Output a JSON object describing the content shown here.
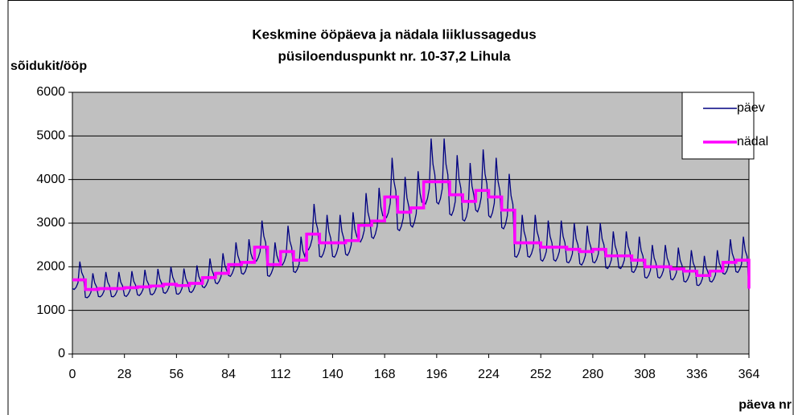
{
  "chart_data": {
    "type": "line",
    "title": "Keskmine ööpäeva ja nädala liiklussagedus",
    "subtitle": "püsiloenduspunkt nr. 10-37,2 Lihula",
    "ylabel": "sõidukit/ööp",
    "xlabel": "päeva nr",
    "xlim": [
      0,
      364
    ],
    "xticks": [
      0,
      28,
      56,
      84,
      112,
      140,
      168,
      196,
      224,
      252,
      280,
      308,
      336,
      364
    ],
    "ylim": [
      0,
      6000
    ],
    "yticks": [
      0,
      1000,
      2000,
      3000,
      4000,
      5000,
      6000
    ],
    "grid": true,
    "legend": "upper right",
    "x": [
      0,
      1,
      2,
      3,
      4,
      5,
      6,
      7,
      8,
      9,
      10,
      11,
      12,
      13,
      14,
      15,
      16,
      17,
      18,
      19,
      20,
      21,
      22,
      23,
      24,
      25,
      26,
      27,
      28,
      29,
      30,
      31,
      32,
      33,
      34,
      35,
      36,
      37,
      38,
      39,
      40,
      41,
      42,
      43,
      44,
      45,
      46,
      47,
      48,
      49,
      50,
      51,
      52,
      53,
      54,
      55,
      56,
      57,
      58,
      59,
      60,
      61,
      62,
      63,
      64,
      65,
      66,
      67,
      68,
      69,
      70,
      71,
      72,
      73,
      74,
      75,
      76,
      77,
      78,
      79,
      80,
      81,
      82,
      83,
      84,
      85,
      86,
      87,
      88,
      89,
      90,
      91,
      92,
      93,
      94,
      95,
      96,
      97,
      98,
      99,
      100,
      101,
      102,
      103,
      104,
      105,
      106,
      107,
      108,
      109,
      110,
      111,
      112,
      113,
      114,
      115,
      116,
      117,
      118,
      119,
      120,
      121,
      122,
      123,
      124,
      125,
      126,
      127,
      128,
      129,
      130,
      131,
      132,
      133,
      134,
      135,
      136,
      137,
      138,
      139,
      140,
      141,
      142,
      143,
      144,
      145,
      146,
      147,
      148,
      149,
      150,
      151,
      152,
      153,
      154,
      155,
      156,
      157,
      158,
      159,
      160,
      161,
      162,
      163,
      164,
      165,
      166,
      167,
      168,
      169,
      170,
      171,
      172,
      173,
      174,
      175,
      176,
      177,
      178,
      179,
      180,
      181,
      182,
      183,
      184,
      185,
      186,
      187,
      188,
      189,
      190,
      191,
      192,
      193,
      194,
      195,
      196,
      197,
      198,
      199,
      200,
      201,
      202,
      203,
      204,
      205,
      206,
      207,
      208,
      209,
      210,
      211,
      212,
      213,
      214,
      215,
      216,
      217,
      218,
      219,
      220,
      221,
      222,
      223,
      224,
      225,
      226,
      227,
      228,
      229,
      230,
      231,
      232,
      233,
      234,
      235,
      236,
      237,
      238,
      239,
      240,
      241,
      242,
      243,
      244,
      245,
      246,
      247,
      248,
      249,
      250,
      251,
      252,
      253,
      254,
      255,
      256,
      257,
      258,
      259,
      260,
      261,
      262,
      263,
      264,
      265,
      266,
      267,
      268,
      269,
      270,
      271,
      272,
      273,
      274,
      275,
      276,
      277,
      278,
      279,
      280,
      281,
      282,
      283,
      284,
      285,
      286,
      287,
      288,
      289,
      290,
      291,
      292,
      293,
      294,
      295,
      296,
      297,
      298,
      299,
      300,
      301,
      302,
      303,
      304,
      305,
      306,
      307,
      308,
      309,
      310,
      311,
      312,
      313,
      314,
      315,
      316,
      317,
      318,
      319,
      320,
      321,
      322,
      323,
      324,
      325,
      326,
      327,
      328,
      329,
      330,
      331,
      332,
      333,
      334,
      335,
      336,
      337,
      338,
      339,
      340,
      341,
      342,
      343,
      344,
      345,
      346,
      347,
      348,
      349,
      350,
      351,
      352,
      353,
      354,
      355,
      356,
      357,
      358,
      359,
      360,
      361,
      362,
      363,
      364
    ],
    "series": [
      {
        "name": "päev",
        "color": "#000080",
        "values": [
          1500,
          1480,
          1530,
          1630,
          2120,
          1870,
          1770,
          1300,
          1290,
          1330,
          1420,
          1850,
          1630,
          1540,
          1320,
          1310,
          1350,
          1440,
          1880,
          1650,
          1560,
          1320,
          1310,
          1350,
          1440,
          1880,
          1650,
          1560,
          1340,
          1320,
          1370,
          1460,
          1900,
          1670,
          1580,
          1360,
          1340,
          1390,
          1480,
          1930,
          1690,
          1600,
          1370,
          1360,
          1400,
          1500,
          1950,
          1720,
          1620,
          1410,
          1390,
          1440,
          1540,
          2000,
          1760,
          1660,
          1380,
          1370,
          1410,
          1510,
          1960,
          1730,
          1630,
          1430,
          1410,
          1460,
          1560,
          2030,
          1780,
          1680,
          1540,
          1520,
          1580,
          1680,
          2190,
          1930,
          1820,
          1630,
          1610,
          1670,
          1780,
          2310,
          2040,
          1920,
          1800,
          1780,
          1850,
          1970,
          2560,
          2260,
          2130,
          1850,
          1830,
          1890,
          2020,
          2630,
          2310,
          2180,
          2160,
          2130,
          2210,
          2350,
          3060,
          2700,
          2550,
          1800,
          1780,
          1850,
          1970,
          2560,
          2260,
          2130,
          2070,
          2040,
          2120,
          2260,
          2940,
          2590,
          2440,
          1890,
          1870,
          1940,
          2060,
          2690,
          2370,
          2240,
          2420,
          2390,
          2480,
          2640,
          3440,
          3030,
          2860,
          2240,
          2220,
          2300,
          2450,
          3190,
          2810,
          2650,
          2240,
          2220,
          2300,
          2450,
          3190,
          2810,
          2650,
          2290,
          2260,
          2340,
          2500,
          3250,
          2860,
          2700,
          2600,
          2570,
          2660,
          2830,
          3690,
          3250,
          3070,
          2680,
          2650,
          2750,
          2930,
          3810,
          3360,
          3170,
          3170,
          3130,
          3240,
          3460,
          4500,
          3960,
          3740,
          2860,
          2830,
          2930,
          3120,
          4060,
          3580,
          3380,
          2950,
          2910,
          3020,
          3220,
          4190,
          3690,
          3480,
          3480,
          3440,
          3560,
          3790,
          4940,
          4350,
          4110,
          3480,
          3440,
          3560,
          3790,
          4940,
          4350,
          4110,
          3210,
          3180,
          3290,
          3500,
          4560,
          4020,
          3800,
          3080,
          3050,
          3150,
          3360,
          4380,
          3850,
          3640,
          3300,
          3260,
          3380,
          3600,
          4690,
          4130,
          3900,
          3170,
          3130,
          3240,
          3460,
          4500,
          3960,
          3740,
          2900,
          2870,
          2970,
          3170,
          4130,
          3630,
          3430,
          2240,
          2220,
          2300,
          2450,
          3190,
          2810,
          2650,
          2240,
          2220,
          2300,
          2450,
          3190,
          2810,
          2650,
          2160,
          2130,
          2210,
          2350,
          3060,
          2700,
          2550,
          2160,
          2130,
          2210,
          2350,
          3060,
          2700,
          2550,
          2110,
          2090,
          2160,
          2300,
          3000,
          2640,
          2500,
          2070,
          2040,
          2120,
          2260,
          2940,
          2590,
          2440,
          2110,
          2090,
          2160,
          2300,
          3000,
          2640,
          2500,
          1980,
          1960,
          2030,
          2160,
          2810,
          2480,
          2340,
          1980,
          1960,
          2030,
          2160,
          2810,
          2480,
          2340,
          1890,
          1870,
          1940,
          2060,
          2690,
          2370,
          2240,
          1760,
          1740,
          1800,
          1920,
          2500,
          2200,
          2080,
          1760,
          1740,
          1800,
          1920,
          2500,
          2200,
          2080,
          1720,
          1700,
          1760,
          1870,
          2440,
          2150,
          2030,
          1670,
          1650,
          1710,
          1820,
          2380,
          2090,
          1980,
          1580,
          1570,
          1620,
          1730,
          2250,
          1980,
          1870,
          1670,
          1650,
          1710,
          1820,
          2380,
          2090,
          1980,
          1850,
          1830,
          1890,
          2020,
          2630,
          2310,
          2180,
          1890,
          1870,
          1940,
          2060,
          2690,
          2370,
          2240,
          1500
        ]
      },
      {
        "name": "nädal",
        "color": "#ff00ff",
        "step": true,
        "x": [
          0,
          7,
          14,
          21,
          28,
          35,
          42,
          49,
          56,
          63,
          70,
          77,
          84,
          91,
          98,
          105,
          112,
          119,
          126,
          133,
          140,
          147,
          154,
          161,
          168,
          175,
          182,
          189,
          196,
          203,
          210,
          217,
          224,
          231,
          238,
          245,
          252,
          259,
          266,
          273,
          280,
          287,
          294,
          301,
          308,
          315,
          322,
          329,
          336,
          343,
          350,
          357,
          364
        ],
        "values": [
          1700,
          1480,
          1500,
          1500,
          1520,
          1540,
          1560,
          1600,
          1570,
          1620,
          1750,
          1850,
          2050,
          2100,
          2450,
          2050,
          2350,
          2150,
          2750,
          2550,
          2550,
          2600,
          2950,
          3050,
          3600,
          3250,
          3350,
          3950,
          3950,
          3650,
          3500,
          3750,
          3600,
          3300,
          2550,
          2550,
          2450,
          2450,
          2400,
          2350,
          2400,
          2250,
          2250,
          2150,
          2000,
          2000,
          1950,
          1900,
          1800,
          1900,
          2100,
          2150,
          1500
        ]
      }
    ]
  }
}
